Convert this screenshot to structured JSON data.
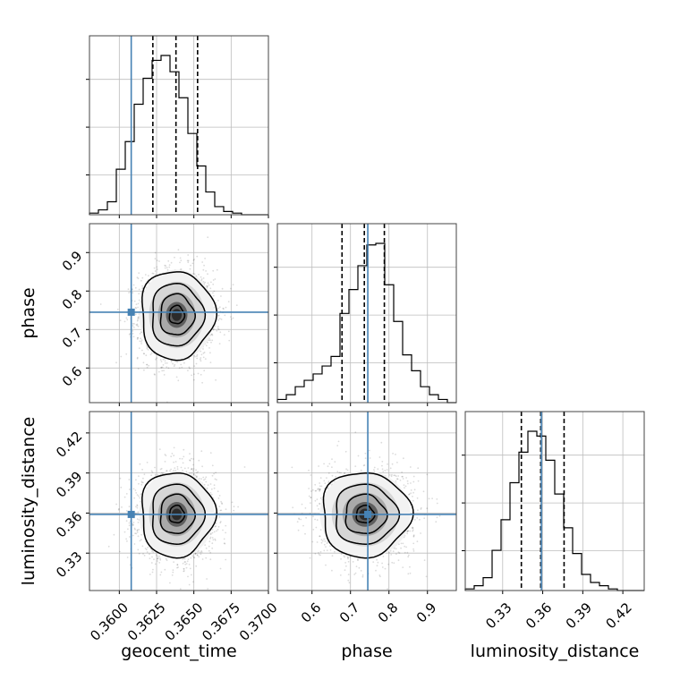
{
  "chart_data": {
    "type": "corner",
    "parameters": [
      "geocent_time",
      "phase",
      "luminosity_distance"
    ],
    "axis_labels": {
      "geocent_time": "geocent_time",
      "phase": "phase",
      "luminosity_distance": "luminosity_distance"
    },
    "ranges": {
      "geocent_time": [
        0.358,
        0.37
      ],
      "phase": [
        0.51,
        0.975
      ],
      "luminosity_distance": [
        0.302,
        0.436
      ]
    },
    "ticks": {
      "geocent_time": [
        {
          "value": 0.36,
          "label": "0.3600"
        },
        {
          "value": 0.3625,
          "label": "0.3625"
        },
        {
          "value": 0.365,
          "label": "0.3650"
        },
        {
          "value": 0.3675,
          "label": "0.3675"
        },
        {
          "value": 0.37,
          "label": "0.3700"
        }
      ],
      "phase": [
        {
          "value": 0.6,
          "label": "0.6"
        },
        {
          "value": 0.7,
          "label": "0.7"
        },
        {
          "value": 0.8,
          "label": "0.8"
        },
        {
          "value": 0.9,
          "label": "0.9"
        }
      ],
      "luminosity_distance": [
        {
          "value": 0.33,
          "label": "0.33"
        },
        {
          "value": 0.36,
          "label": "0.36"
        },
        {
          "value": 0.39,
          "label": "0.39"
        },
        {
          "value": 0.42,
          "label": "0.42"
        }
      ]
    },
    "truths": {
      "geocent_time": 0.3608,
      "phase": 0.745,
      "luminosity_distance": 0.359
    },
    "quantiles": {
      "geocent_time": [
        0.36225,
        0.3638,
        0.36525
      ],
      "phase": [
        0.678,
        0.736,
        0.788
      ],
      "luminosity_distance": [
        0.344,
        0.3585,
        0.376
      ]
    },
    "histograms": {
      "geocent_time": [
        1,
        3,
        8,
        28,
        45,
        68,
        84,
        95,
        98,
        88,
        72,
        50,
        30,
        14,
        5,
        2,
        1,
        0,
        0,
        0
      ],
      "phase": [
        2,
        5,
        10,
        14,
        18,
        23,
        29,
        56,
        71,
        86,
        99,
        100,
        74,
        51,
        30,
        20,
        10,
        5,
        2,
        0
      ],
      "luminosity_distance": [
        1,
        3,
        8,
        25,
        44,
        67,
        86,
        99,
        96,
        81,
        60,
        39,
        23,
        10,
        5,
        3,
        1,
        0,
        0,
        0
      ]
    },
    "samples": 4000,
    "grid": true
  }
}
